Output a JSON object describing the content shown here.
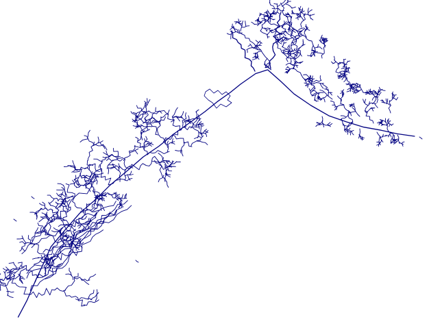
{
  "map": {
    "type": "river-network",
    "background_color": "#ffffff",
    "line_color": "#000080"
  }
}
